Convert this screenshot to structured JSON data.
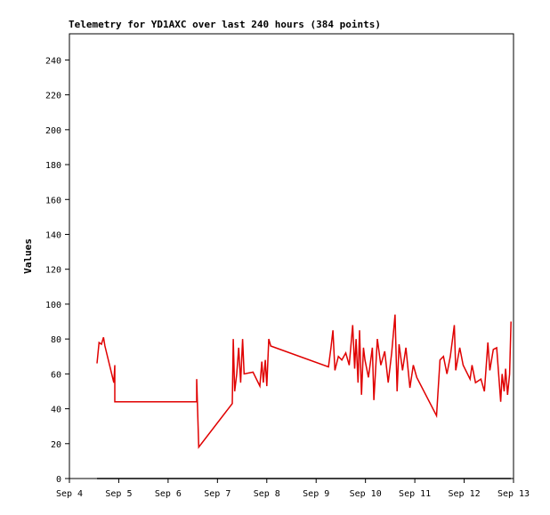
{
  "chart_data": {
    "type": "line",
    "title": "Telemetry for YD1AXC over last 240 hours (384 points)",
    "y_label": "Values",
    "xlim": [
      4,
      13
    ],
    "xticks": [
      {
        "value": 4,
        "label": "Sep 4"
      },
      {
        "value": 5,
        "label": "Sep 5"
      },
      {
        "value": 6,
        "label": "Sep 6"
      },
      {
        "value": 7,
        "label": "Sep 7"
      },
      {
        "value": 8,
        "label": "Sep 8"
      },
      {
        "value": 9,
        "label": "Sep 9"
      },
      {
        "value": 10,
        "label": "Sep 10"
      },
      {
        "value": 11,
        "label": "Sep 11"
      },
      {
        "value": 12,
        "label": "Sep 12"
      },
      {
        "value": 13,
        "label": "Sep 13"
      }
    ],
    "ylim": [
      0,
      255
    ],
    "yticks": [
      0,
      20,
      40,
      60,
      80,
      100,
      120,
      140,
      160,
      180,
      200,
      220,
      240
    ],
    "series": [
      {
        "color": "#e00000",
        "x": [
          4.56,
          4.6,
          4.65,
          4.69,
          4.72,
          4.9,
          4.92,
          4.92,
          6.58,
          6.58,
          6.62,
          7.3,
          7.32,
          7.35,
          7.39,
          7.43,
          7.47,
          7.51,
          7.54,
          7.72,
          7.86,
          7.9,
          7.93,
          7.97,
          8.0,
          8.04,
          8.08,
          9.25,
          9.3,
          9.34,
          9.38,
          9.45,
          9.52,
          9.6,
          9.67,
          9.74,
          9.78,
          9.81,
          9.85,
          9.88,
          9.92,
          9.96,
          9.99,
          10.06,
          10.14,
          10.17,
          10.24,
          10.31,
          10.39,
          10.46,
          10.53,
          10.6,
          10.64,
          10.68,
          10.75,
          10.82,
          10.9,
          10.97,
          11.04,
          11.44,
          11.51,
          11.58,
          11.65,
          11.72,
          11.8,
          11.83,
          11.91,
          11.98,
          12.12,
          12.16,
          12.23,
          12.34,
          12.41,
          12.48,
          12.52,
          12.59,
          12.66,
          12.74,
          12.77,
          12.81,
          12.84,
          12.88,
          12.92,
          12.95
        ],
        "values": [
          66,
          78,
          77,
          81,
          76,
          55,
          65,
          44,
          44,
          57,
          18,
          43,
          80,
          50,
          60,
          75,
          55,
          80,
          60,
          61,
          53,
          67,
          55,
          68,
          53,
          80,
          76,
          64,
          75,
          85,
          62,
          70,
          68,
          72,
          65,
          88,
          63,
          80,
          55,
          85,
          48,
          75,
          68,
          58,
          75,
          45,
          80,
          65,
          73,
          55,
          72,
          94,
          50,
          77,
          62,
          75,
          52,
          65,
          58,
          36,
          68,
          70,
          60,
          70,
          88,
          62,
          75,
          65,
          57,
          65,
          55,
          57,
          50,
          78,
          62,
          74,
          75,
          44,
          60,
          50,
          63,
          48,
          60,
          90
        ]
      },
      {
        "color": "#000000",
        "x": [
          4.56,
          12.95
        ],
        "values": [
          0,
          0
        ]
      }
    ]
  }
}
